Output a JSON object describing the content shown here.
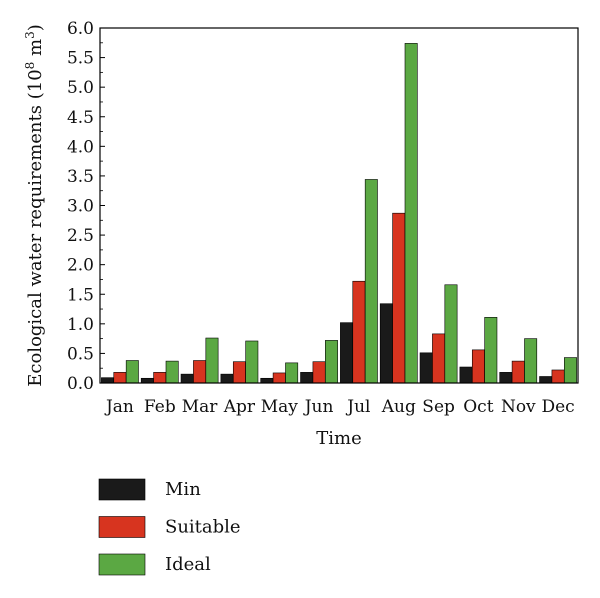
{
  "chart_data": {
    "type": "bar",
    "title": "",
    "xlabel": "Time",
    "ylabel": "Ecological water requirements (10",
    "ylabel_sup1": "8",
    "ylabel_mid": " m",
    "ylabel_sup2": "3",
    "ylabel_end": ")",
    "ylim": [
      0,
      6.0
    ],
    "yticks": [
      "0.0",
      "0.5",
      "1.0",
      "1.5",
      "2.0",
      "2.5",
      "3.0",
      "3.5",
      "4.0",
      "4.5",
      "5.0",
      "5.5",
      "6.0"
    ],
    "categories": [
      "Jan",
      "Feb",
      "Mar",
      "Apr",
      "May",
      "Jun",
      "Jul",
      "Aug",
      "Sep",
      "Oct",
      "Nov",
      "Dec"
    ],
    "series": [
      {
        "name": "Min",
        "color": "#1a1a1a",
        "values": [
          0.09,
          0.08,
          0.15,
          0.15,
          0.08,
          0.18,
          1.02,
          1.34,
          0.51,
          0.27,
          0.18,
          0.11
        ]
      },
      {
        "name": "Suitable",
        "color": "#d7341f",
        "values": [
          0.18,
          0.18,
          0.38,
          0.36,
          0.17,
          0.36,
          1.72,
          2.87,
          0.83,
          0.56,
          0.37,
          0.22
        ]
      },
      {
        "name": "Ideal",
        "color": "#5ba843",
        "values": [
          0.38,
          0.37,
          0.76,
          0.71,
          0.34,
          0.72,
          3.44,
          5.74,
          1.66,
          1.11,
          0.75,
          0.43
        ]
      }
    ],
    "grid": false,
    "legend_position": "bottom-left"
  }
}
